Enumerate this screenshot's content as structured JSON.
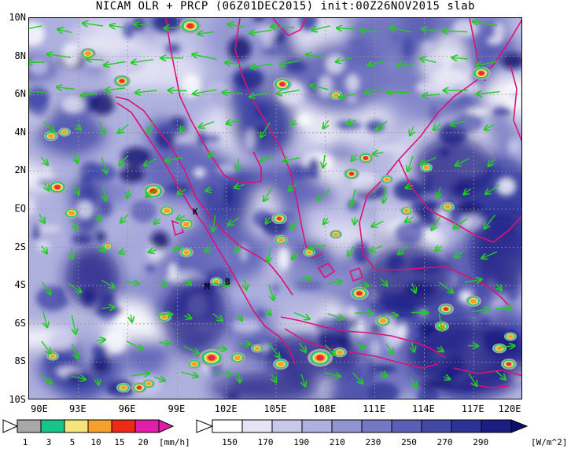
{
  "title": "NICAM OLR + PRCP (06Z01DEC2015) init:00Z26NOV2015 slab",
  "map": {
    "lat_labels": [
      "10N",
      "8N",
      "6N",
      "4N",
      "2N",
      "EQ",
      "2S",
      "4S",
      "6S",
      "8S",
      "10S"
    ],
    "lon_labels": [
      "90E",
      "93E",
      "96E",
      "99E",
      "102E",
      "105E",
      "108E",
      "111E",
      "114E",
      "117E",
      "120E"
    ],
    "lat_range": [
      -10,
      10
    ],
    "lon_range": [
      90,
      120
    ],
    "wind_arrow_color": "#22cc22",
    "coastline_color": "#dd1177",
    "grid": true,
    "site_markers": [
      {
        "label": "K",
        "lon": 100.5,
        "lat": -0.1
      },
      {
        "label": "M",
        "lon": 100.2,
        "lat": -4.2
      },
      {
        "label": "B",
        "lon": 102.2,
        "lat": -4.0
      }
    ]
  },
  "precip_colorbar": {
    "unit": "[mm/h]",
    "labels": [
      "1",
      "3",
      "5",
      "10",
      "15",
      "20"
    ],
    "colors": [
      "#ffffff",
      "#a8a8a8",
      "#18c48a",
      "#f6e47c",
      "#f6a02e",
      "#ec2a16",
      "#e01ea8"
    ]
  },
  "olr_colorbar": {
    "unit": "[W/m^2]",
    "labels": [
      "150",
      "170",
      "190",
      "210",
      "230",
      "250",
      "270",
      "290"
    ],
    "colors": [
      "#ffffff",
      "#e4e4f4",
      "#c8c8ea",
      "#aeb0de",
      "#9094d0",
      "#7478c2",
      "#5a5eb4",
      "#4248a6",
      "#2c3296",
      "#1a1e82",
      "#0c0f6a"
    ]
  },
  "chart_data": {
    "type": "map",
    "title": "NICAM OLR + PRCP (06Z01DEC2015) init:00Z26NOV2015 slab",
    "x_ticks": [
      "90E",
      "93E",
      "96E",
      "99E",
      "102E",
      "105E",
      "108E",
      "111E",
      "114E",
      "117E",
      "120E"
    ],
    "y_ticks": [
      "10N",
      "8N",
      "6N",
      "4N",
      "2N",
      "EQ",
      "2S",
      "4S",
      "6S",
      "8S",
      "10S"
    ],
    "xlim": [
      90,
      120
    ],
    "ylim": [
      -10,
      10
    ],
    "legend_precip_mm_per_h": [
      1,
      3,
      5,
      10,
      15,
      20
    ],
    "legend_olr_w_per_m2": [
      150,
      170,
      190,
      210,
      230,
      250,
      270,
      290
    ]
  }
}
